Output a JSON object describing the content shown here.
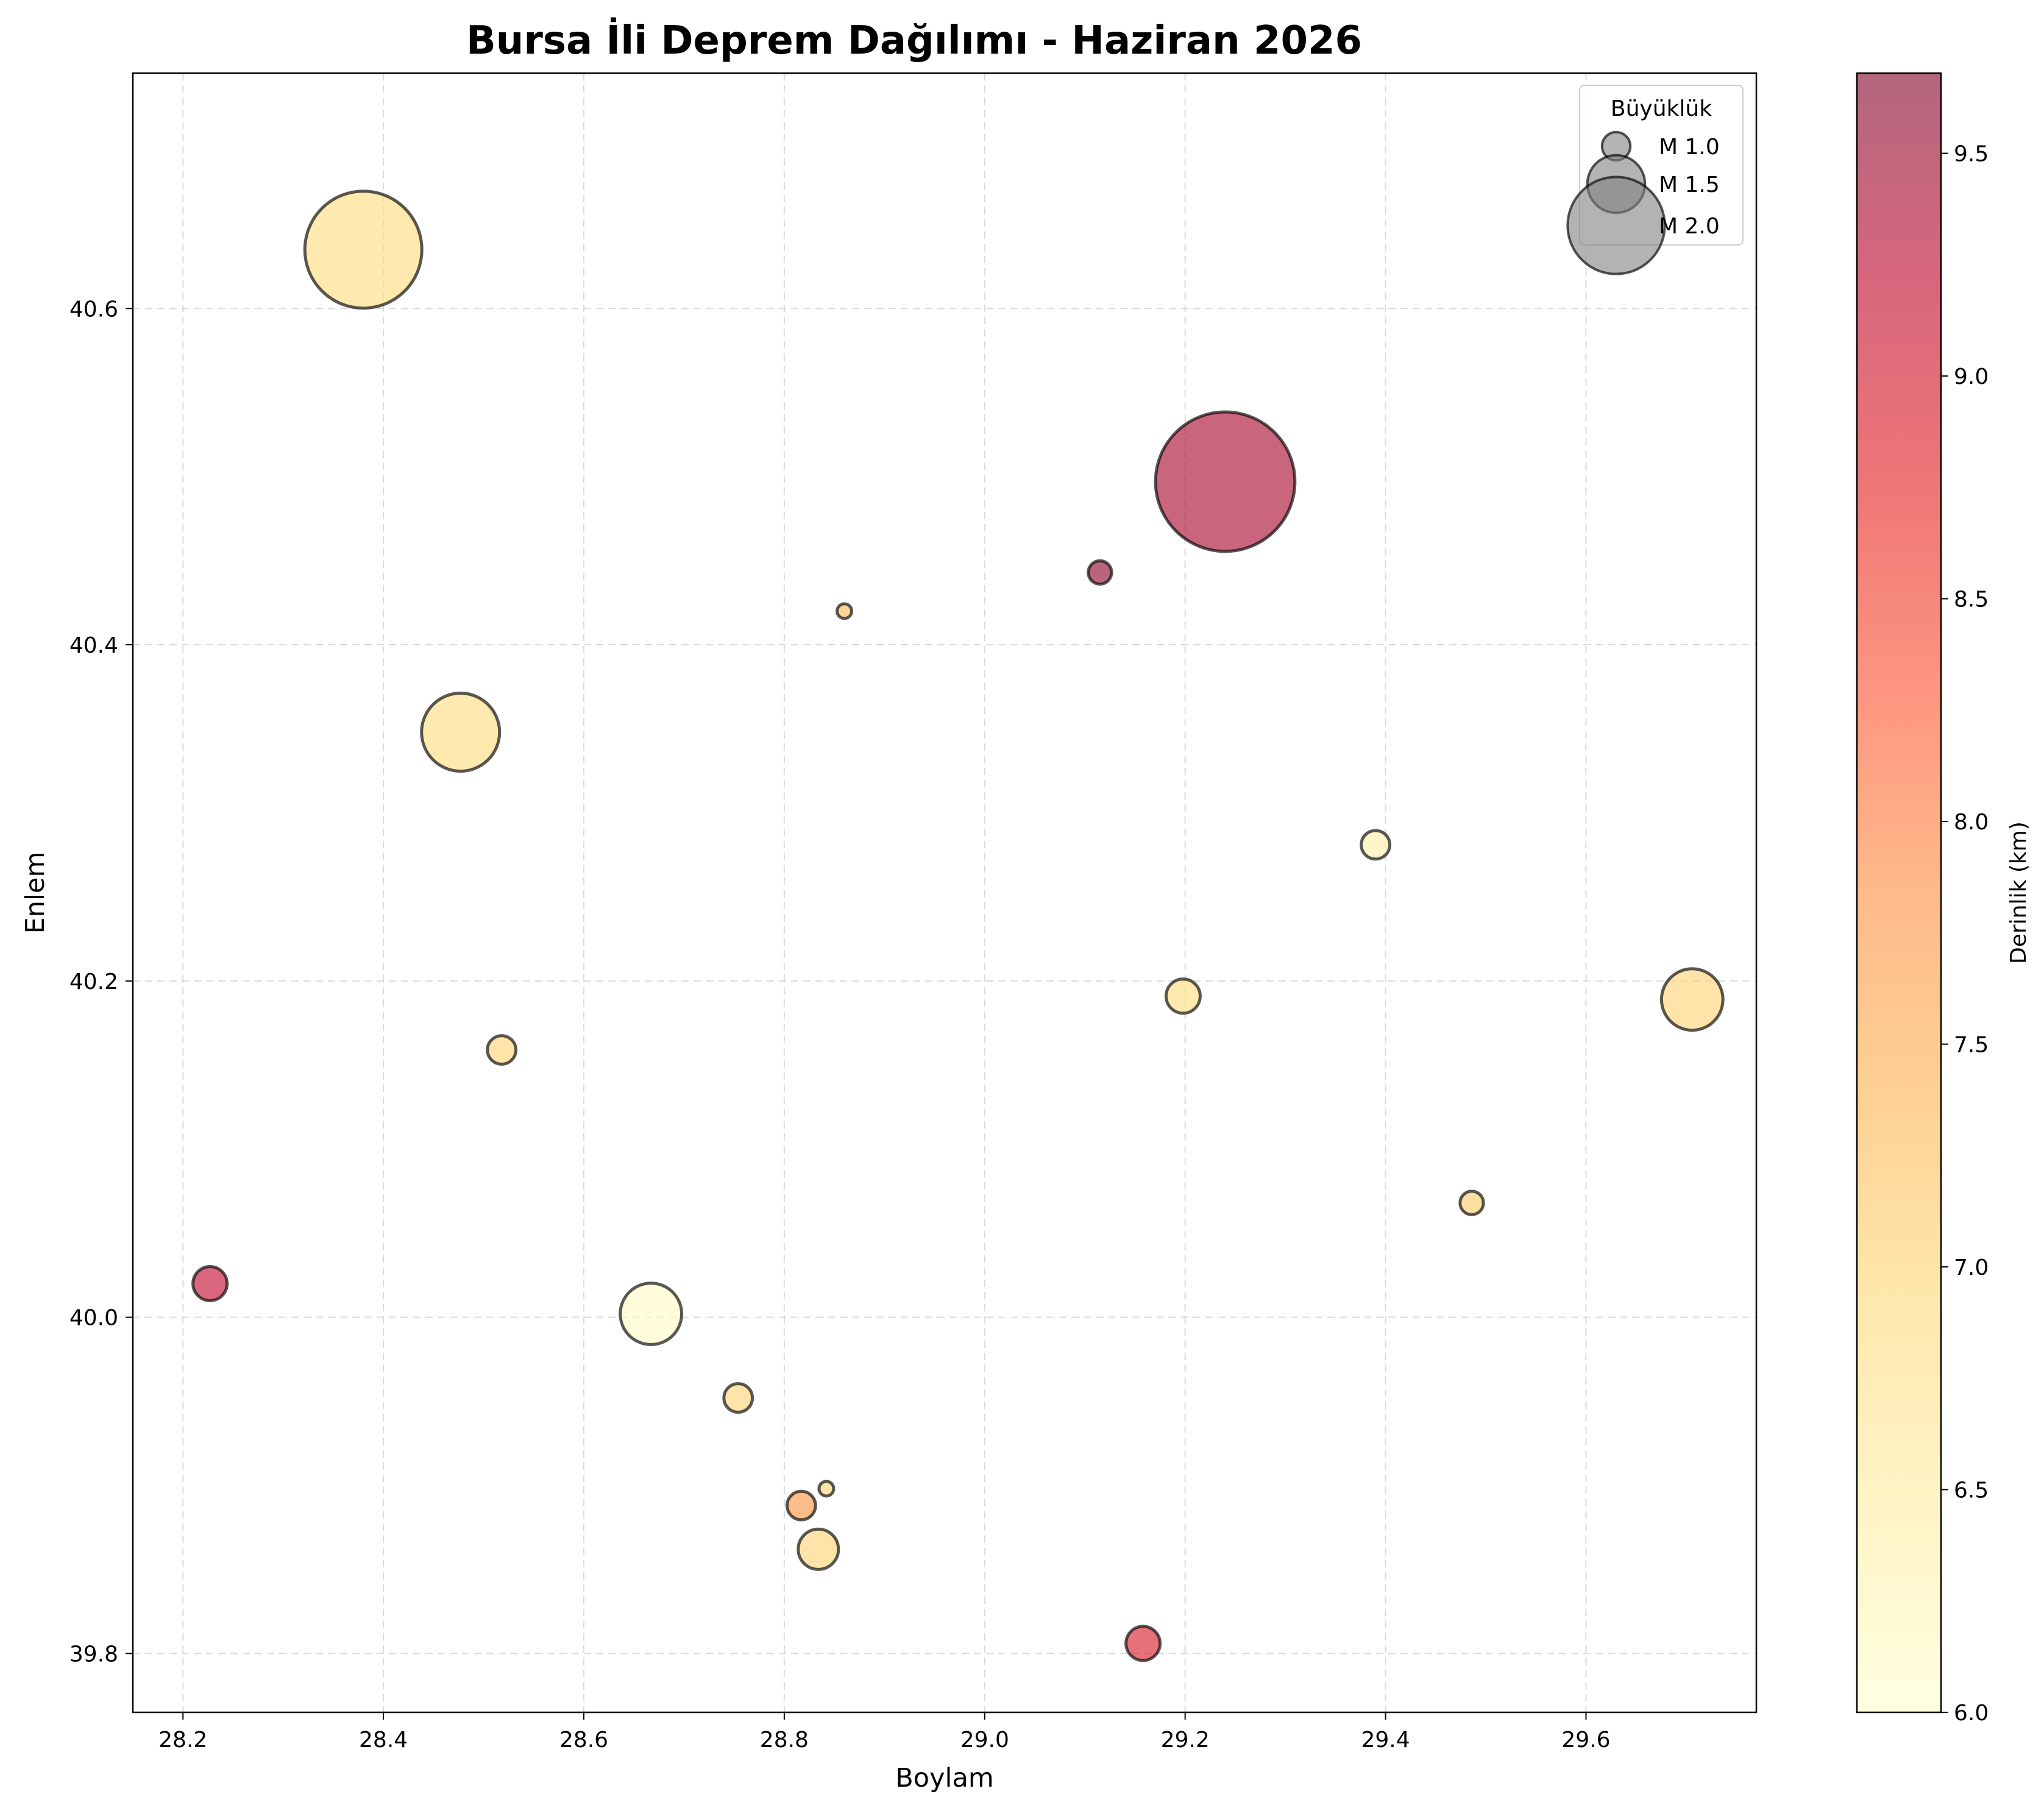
{
  "chart_data": {
    "type": "scatter",
    "title": "Bursa İli Deprem Dağılımı - Haziran 2026",
    "xlabel": "Boylam",
    "ylabel": "Enlem",
    "xlim": [
      28.15,
      29.77
    ],
    "ylim": [
      39.765,
      40.74
    ],
    "xticks": [
      28.2,
      28.4,
      28.6,
      28.8,
      29.0,
      29.2,
      29.4,
      29.6
    ],
    "yticks": [
      39.8,
      40.0,
      40.2,
      40.4,
      40.6
    ],
    "xtick_labels": [
      "28.2",
      "28.4",
      "28.6",
      "28.8",
      "29.0",
      "29.2",
      "29.4",
      "29.6"
    ],
    "ytick_labels": [
      "39.8",
      "40.0",
      "40.2",
      "40.4",
      "40.6"
    ],
    "grid": true,
    "colorbar": {
      "label": "Derinlik (km)",
      "range": [
        6.0,
        9.68
      ],
      "ticks": [
        6.0,
        6.5,
        7.0,
        7.5,
        8.0,
        8.5,
        9.0,
        9.5
      ],
      "tick_labels": [
        "6.0",
        "6.5",
        "7.0",
        "7.5",
        "8.0",
        "8.5",
        "9.0",
        "9.5"
      ],
      "colormap": "YlOrRd"
    },
    "legend": {
      "title": "Büyüklük",
      "placement": "top-right",
      "entries": [
        {
          "label": "M 1.0",
          "magnitude": 1.0
        },
        {
          "label": "M 1.5",
          "magnitude": 1.5
        },
        {
          "label": "M 2.0",
          "magnitude": 2.0
        }
      ]
    },
    "points": [
      {
        "x": 28.38,
        "y": 40.635,
        "magnitude": 2.0,
        "depth": 6.9
      },
      {
        "x": 29.24,
        "y": 40.497,
        "magnitude": 2.2,
        "depth": 9.4
      },
      {
        "x": 29.115,
        "y": 40.443,
        "magnitude": 0.8,
        "depth": 9.6
      },
      {
        "x": 28.86,
        "y": 40.42,
        "magnitude": 0.6,
        "depth": 7.3
      },
      {
        "x": 28.477,
        "y": 40.348,
        "magnitude": 1.6,
        "depth": 6.9
      },
      {
        "x": 29.39,
        "y": 40.281,
        "magnitude": 0.9,
        "depth": 6.4
      },
      {
        "x": 29.198,
        "y": 40.191,
        "magnitude": 1.0,
        "depth": 6.9
      },
      {
        "x": 29.706,
        "y": 40.189,
        "magnitude": 1.4,
        "depth": 7.0
      },
      {
        "x": 28.518,
        "y": 40.159,
        "magnitude": 0.9,
        "depth": 7.0
      },
      {
        "x": 29.486,
        "y": 40.068,
        "magnitude": 0.8,
        "depth": 7.1
      },
      {
        "x": 28.227,
        "y": 40.02,
        "magnitude": 1.0,
        "depth": 9.2
      },
      {
        "x": 28.667,
        "y": 40.002,
        "magnitude": 1.4,
        "depth": 6.1
      },
      {
        "x": 28.754,
        "y": 39.952,
        "magnitude": 0.9,
        "depth": 7.0
      },
      {
        "x": 28.842,
        "y": 39.898,
        "magnitude": 0.6,
        "depth": 7.0
      },
      {
        "x": 28.817,
        "y": 39.888,
        "magnitude": 0.9,
        "depth": 7.8
      },
      {
        "x": 28.834,
        "y": 39.862,
        "magnitude": 1.1,
        "depth": 7.0
      },
      {
        "x": 29.158,
        "y": 39.806,
        "magnitude": 1.0,
        "depth": 8.9
      }
    ]
  }
}
